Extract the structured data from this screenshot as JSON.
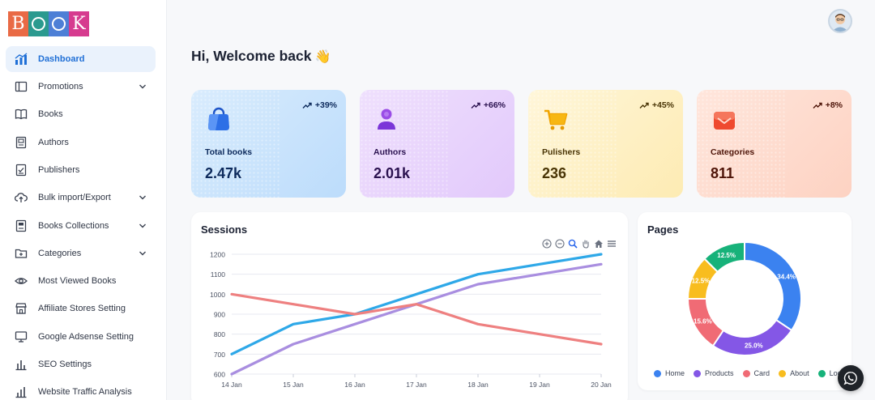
{
  "brand": {
    "letters": [
      {
        "char": "B",
        "color": "#e96a45"
      },
      {
        "char": "",
        "color": "#2b9a8f"
      },
      {
        "char": "",
        "color": "#4d7fd6"
      },
      {
        "char": "K",
        "color": "#d63b8f"
      }
    ]
  },
  "sidebar": {
    "items": [
      {
        "label": "Dashboard",
        "icon": "dashboard-icon",
        "active": true,
        "has_children": false
      },
      {
        "label": "Promotions",
        "icon": "promotions-icon",
        "active": false,
        "has_children": true
      },
      {
        "label": "Books",
        "icon": "book-icon",
        "active": false,
        "has_children": false
      },
      {
        "label": "Authors",
        "icon": "author-icon",
        "active": false,
        "has_children": false
      },
      {
        "label": "Publishers",
        "icon": "publisher-icon",
        "active": false,
        "has_children": false
      },
      {
        "label": "Bulk import/Export",
        "icon": "upload-icon",
        "active": false,
        "has_children": true
      },
      {
        "label": "Books Collections",
        "icon": "collection-icon",
        "active": false,
        "has_children": true
      },
      {
        "label": "Categories",
        "icon": "folder-icon",
        "active": false,
        "has_children": true
      },
      {
        "label": "Most Viewed Books",
        "icon": "eye-icon",
        "active": false,
        "has_children": false
      },
      {
        "label": "Affiliate Stores Setting",
        "icon": "store-icon",
        "active": false,
        "has_children": false
      },
      {
        "label": "Google Adsense Setting",
        "icon": "monitor-icon",
        "active": false,
        "has_children": false
      },
      {
        "label": "SEO Settings",
        "icon": "bar-chart-icon",
        "active": false,
        "has_children": false
      },
      {
        "label": "Website Traffic Analysis",
        "icon": "traffic-icon",
        "active": false,
        "has_children": false
      }
    ]
  },
  "header": {
    "welcome": "Hi, Welcome back",
    "wave": "👋"
  },
  "stats": [
    {
      "key": "books",
      "label": "Total books",
      "value": "2.47k",
      "trend": "+39%",
      "icon": "shopping-bag-icon"
    },
    {
      "key": "authors",
      "label": "Authors",
      "value": "2.01k",
      "trend": "+66%",
      "icon": "user-icon"
    },
    {
      "key": "publishers",
      "label": "Pulishers",
      "value": "236",
      "trend": "+45%",
      "icon": "cart-icon"
    },
    {
      "key": "categories",
      "label": "Categories",
      "value": "811",
      "trend": "+8%",
      "icon": "mail-icon"
    }
  ],
  "sessions_title": "Sessions",
  "pages_title": "Pages",
  "chart_data": [
    {
      "type": "line",
      "title": "Sessions",
      "x": [
        "14 Jan",
        "15 Jan",
        "16 Jan",
        "17 Jan",
        "18 Jan",
        "19 Jan",
        "20 Jan"
      ],
      "ylim": [
        600,
        1200
      ],
      "yticks": [
        600,
        700,
        800,
        900,
        1000,
        1100,
        1200
      ],
      "grid": true,
      "series": [
        {
          "color": "#2ea8e8",
          "values": [
            700,
            850,
            900,
            1000,
            1100,
            1150,
            1200
          ]
        },
        {
          "color": "#a98ee0",
          "values": [
            600,
            750,
            850,
            950,
            1050,
            1100,
            1150
          ]
        },
        {
          "color": "#ee8080",
          "values": [
            1000,
            950,
            900,
            950,
            850,
            800,
            750
          ]
        }
      ]
    },
    {
      "type": "pie",
      "title": "Pages",
      "legend": "bottom",
      "slices": [
        {
          "name": "Home",
          "value": 34.4,
          "label": "34.4%",
          "color": "#3b82f0"
        },
        {
          "name": "Products",
          "value": 25.0,
          "label": "25.0%",
          "color": "#8457e6"
        },
        {
          "name": "Card",
          "value": 15.6,
          "label": "15.6%",
          "color": "#f06b75"
        },
        {
          "name": "About",
          "value": 12.5,
          "label": "12.5%",
          "color": "#f8bd1f"
        },
        {
          "name": "Login",
          "value": 12.5,
          "label": "12.5%",
          "color": "#17b27a"
        }
      ]
    }
  ]
}
